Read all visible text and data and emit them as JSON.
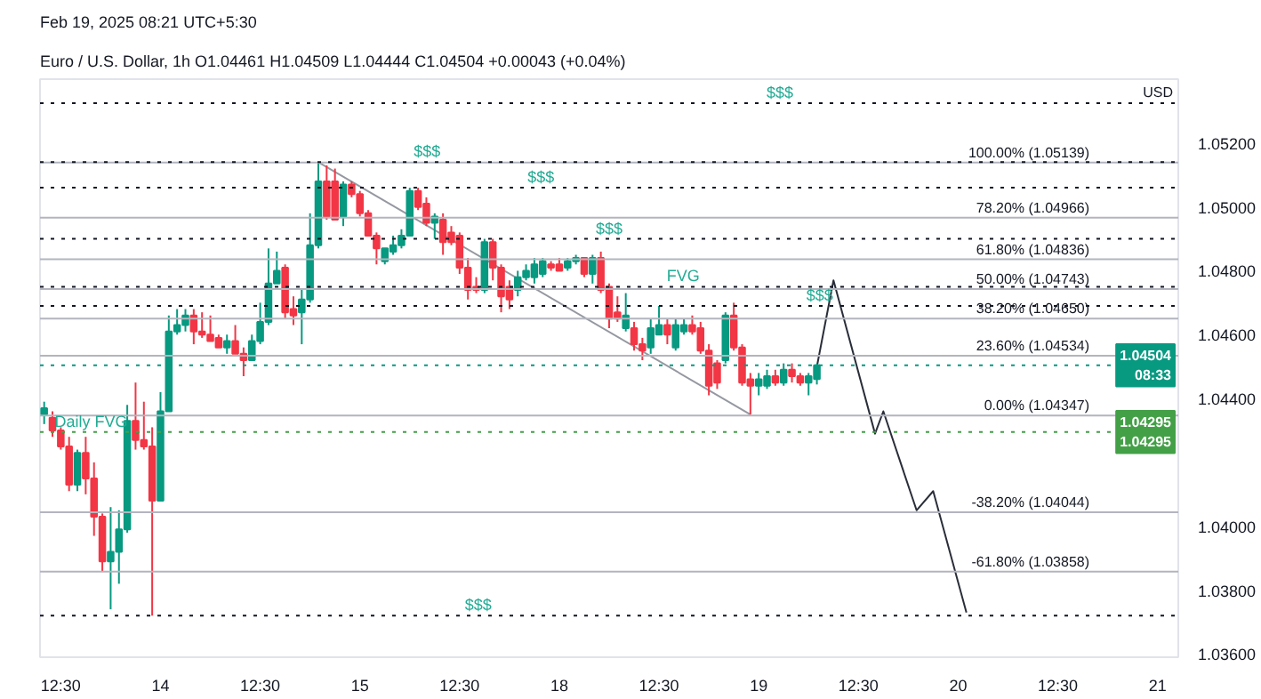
{
  "chart_data": {
    "type": "candlestick",
    "title": "Feb 19, 2025 08:21 UTC+5:30",
    "subtitle": "Euro / U.S. Dollar, 1h O1.04461 H1.04509 L1.04444 C1.04504 +0.00043 (+0.04%)",
    "ylabel": "USD",
    "categories": [
      null,
      null,
      "12:30",
      null,
      null,
      null,
      null,
      null,
      null,
      null,
      null,
      null,
      null,
      null,
      "14",
      null,
      null,
      null,
      null,
      null,
      null,
      null,
      null,
      null,
      null,
      null,
      "12:30",
      null,
      null,
      null,
      null,
      null,
      null,
      null,
      null,
      null,
      null,
      null,
      "15",
      null,
      null,
      null,
      null,
      null,
      null,
      null,
      null,
      null,
      null,
      null,
      "12:30",
      null,
      null,
      null,
      null,
      null,
      null,
      null,
      null,
      null,
      null,
      null,
      "18",
      null,
      null,
      null,
      null,
      null,
      null,
      null,
      null,
      null,
      null,
      null,
      "12:30",
      null,
      null,
      null,
      null,
      null,
      null,
      null,
      null,
      null,
      null,
      null,
      "19",
      null,
      null,
      null,
      null,
      null,
      null,
      null,
      null,
      null,
      null,
      null,
      "12:30",
      null,
      null,
      null,
      null,
      null,
      null,
      null,
      null,
      null,
      null,
      null,
      "20",
      null,
      null,
      null,
      null,
      null,
      null,
      null,
      null,
      null,
      null,
      null,
      "12:30",
      null,
      null,
      null,
      null,
      null,
      null,
      null,
      null,
      null,
      null,
      null,
      "21",
      null,
      null
    ],
    "ohlc": [
      [
        1.0435,
        1.0439,
        1.0432,
        1.0437
      ],
      [
        1.0434,
        1.0436,
        1.0428,
        1.043
      ],
      [
        1.043,
        1.0431,
        1.0424,
        1.0425
      ],
      [
        1.0425,
        1.0428,
        1.0411,
        1.0413
      ],
      [
        1.0413,
        1.0424,
        1.0411,
        1.0423
      ],
      [
        1.0423,
        1.0428,
        1.041,
        1.0415
      ],
      [
        1.0415,
        1.042,
        1.0397,
        1.0403
      ],
      [
        1.0403,
        1.0404,
        1.0386,
        1.0389
      ],
      [
        1.0389,
        1.0406,
        1.0374,
        1.0392
      ],
      [
        1.0392,
        1.0405,
        1.0382,
        1.0399
      ],
      [
        1.0399,
        1.0438,
        1.0398,
        1.0433
      ],
      [
        1.0433,
        1.0445,
        1.0424,
        1.0427
      ],
      [
        1.0427,
        1.0439,
        1.0424,
        1.0425
      ],
      [
        1.0425,
        1.0431,
        1.0372,
        1.0408
      ],
      [
        1.0408,
        1.0442,
        1.0408,
        1.0436
      ],
      [
        1.0436,
        1.0466,
        1.0436,
        1.0461
      ],
      [
        1.0461,
        1.0468,
        1.046,
        1.0463
      ],
      [
        1.0463,
        1.0468,
        1.0461,
        1.0466
      ],
      [
        1.0466,
        1.0468,
        1.0457,
        1.0461
      ],
      [
        1.0461,
        1.0467,
        1.0459,
        1.046
      ],
      [
        1.046,
        1.0466,
        1.0458,
        1.0458
      ],
      [
        1.0459,
        1.046,
        1.0456,
        1.0456
      ],
      [
        1.0456,
        1.046,
        1.0454,
        1.0458
      ],
      [
        1.0458,
        1.0463,
        1.0454,
        1.0454
      ],
      [
        1.0454,
        1.0456,
        1.0447,
        1.0452
      ],
      [
        1.0452,
        1.046,
        1.0452,
        1.0458
      ],
      [
        1.0458,
        1.047,
        1.0457,
        1.0464
      ],
      [
        1.0464,
        1.0487,
        1.0463,
        1.0476
      ],
      [
        1.0476,
        1.0486,
        1.0476,
        1.048
      ],
      [
        1.0481,
        1.0482,
        1.0465,
        1.0467
      ],
      [
        1.0468,
        1.0472,
        1.0463,
        1.0466
      ],
      [
        1.0467,
        1.0474,
        1.0457,
        1.0471
      ],
      [
        1.0471,
        1.0498,
        1.047,
        1.0488
      ],
      [
        1.0488,
        1.0514,
        1.0487,
        1.0508
      ],
      [
        1.0508,
        1.0513,
        1.0496,
        1.0497
      ],
      [
        1.0508,
        1.0512,
        1.0496,
        1.0496
      ],
      [
        1.0497,
        1.0508,
        1.0494,
        1.0507
      ],
      [
        1.0507,
        1.0508,
        1.0503,
        1.0504
      ],
      [
        1.0504,
        1.0505,
        1.0497,
        1.0498
      ],
      [
        1.0498,
        1.0499,
        1.0491,
        1.0491
      ],
      [
        1.0491,
        1.0492,
        1.0482,
        1.0487
      ],
      [
        1.0483,
        1.0487,
        1.0482,
        1.0487
      ],
      [
        1.0486,
        1.0491,
        1.0485,
        1.0488
      ],
      [
        1.0488,
        1.0493,
        1.0487,
        1.0491
      ],
      [
        1.0491,
        1.0506,
        1.0491,
        1.0505
      ],
      [
        1.0505,
        1.0506,
        1.0499,
        1.05
      ],
      [
        1.0501,
        1.0503,
        1.0494,
        1.0495
      ],
      [
        1.0495,
        1.0498,
        1.049,
        1.0497
      ],
      [
        1.0496,
        1.0498,
        1.0485,
        1.0489
      ],
      [
        1.0492,
        1.0494,
        1.0488,
        1.0489
      ],
      [
        1.0491,
        1.0492,
        1.0479,
        1.0481
      ],
      [
        1.0481,
        1.0484,
        1.0471,
        1.0474
      ],
      [
        1.0475,
        1.0478,
        1.0473,
        1.0474
      ],
      [
        1.0474,
        1.049,
        1.0473,
        1.0489
      ],
      [
        1.0489,
        1.049,
        1.0477,
        1.0481
      ],
      [
        1.0481,
        1.0482,
        1.0467,
        1.0472
      ],
      [
        1.0475,
        1.0477,
        1.0468,
        1.0471
      ],
      [
        1.0474,
        1.048,
        1.0472,
        1.0478
      ],
      [
        1.0478,
        1.0482,
        1.0477,
        1.048
      ],
      [
        1.0478,
        1.0484,
        1.0476,
        1.0482
      ],
      [
        1.0479,
        1.0484,
        1.0478,
        1.0483
      ],
      [
        1.0482,
        1.0483,
        1.048,
        1.0481
      ],
      [
        1.0482,
        1.0484,
        1.048,
        1.048
      ],
      [
        1.0481,
        1.0484,
        1.048,
        1.0483
      ],
      [
        1.0483,
        1.0485,
        1.0482,
        1.0484
      ],
      [
        1.0484,
        1.0484,
        1.0478,
        1.0479
      ],
      [
        1.0479,
        1.0485,
        1.0476,
        1.0484
      ],
      [
        1.0484,
        1.0486,
        1.0473,
        1.0474
      ],
      [
        1.0475,
        1.0476,
        1.0462,
        1.0465
      ],
      [
        1.0467,
        1.0472,
        1.0464,
        1.0465
      ],
      [
        1.0462,
        1.0473,
        1.0461,
        1.0466
      ],
      [
        1.0462,
        1.0464,
        1.0455,
        1.0457
      ],
      [
        1.0457,
        1.0459,
        1.0452,
        1.0455
      ],
      [
        1.0456,
        1.0465,
        1.0454,
        1.0462
      ],
      [
        1.046,
        1.0469,
        1.046,
        1.0463
      ],
      [
        1.0463,
        1.0465,
        1.0457,
        1.046
      ],
      [
        1.0456,
        1.0465,
        1.0455,
        1.0463
      ],
      [
        1.0461,
        1.0465,
        1.046,
        1.0463
      ],
      [
        1.0463,
        1.0466,
        1.046,
        1.0461
      ],
      [
        1.0462,
        1.0464,
        1.0454,
        1.0455
      ],
      [
        1.0455,
        1.0457,
        1.0441,
        1.0444
      ],
      [
        1.0451,
        1.0452,
        1.0443,
        1.0445
      ],
      [
        1.0452,
        1.0467,
        1.0451,
        1.0466
      ],
      [
        1.0466,
        1.047,
        1.0455,
        1.0456
      ],
      [
        1.0456,
        1.0457,
        1.0444,
        1.0445
      ],
      [
        1.0446,
        1.0448,
        1.0435,
        1.0444
      ],
      [
        1.0444,
        1.0448,
        1.0441,
        1.0446
      ],
      [
        1.0444,
        1.0449,
        1.0443,
        1.0447
      ],
      [
        1.0447,
        1.0449,
        1.0444,
        1.0445
      ],
      [
        1.0445,
        1.0451,
        1.0444,
        1.0449
      ],
      [
        1.0449,
        1.0451,
        1.0445,
        1.0447
      ],
      [
        1.0447,
        1.0448,
        1.0444,
        1.0445
      ],
      [
        1.0445,
        1.0448,
        1.0441,
        1.0447
      ],
      [
        1.04461,
        1.04509,
        1.04444,
        1.04504
      ],
      null,
      null,
      null,
      null,
      null,
      null,
      null,
      null,
      null,
      null,
      null,
      null,
      null,
      null,
      null,
      null,
      null,
      null,
      null,
      null,
      null,
      null,
      null,
      null,
      null,
      null,
      null,
      null,
      null,
      null,
      null,
      null,
      null,
      null,
      null,
      null,
      null,
      null,
      null,
      null,
      null,
      null,
      null
    ],
    "colors": [
      "#089981",
      "#f23645",
      "#f23645",
      "#f23645",
      "#089981",
      "#f23645",
      "#f23645",
      "#f23645",
      "#089981",
      "#089981",
      "#089981",
      "#f23645",
      "#f23645",
      "#f23645",
      "#089981",
      "#089981",
      "#089981",
      "#089981",
      "#f23645",
      "#f23645",
      "#f23645",
      "#f23645",
      "#089981",
      "#f23645",
      "#f23645",
      "#089981",
      "#089981",
      "#089981",
      "#089981",
      "#f23645",
      "#f23645",
      "#089981",
      "#089981",
      "#089981",
      "#f23645",
      "#f23645",
      "#089981",
      "#f23645",
      "#f23645",
      "#f23645",
      "#f23645",
      "#089981",
      "#089981",
      "#089981",
      "#089981",
      "#f23645",
      "#f23645",
      "#089981",
      "#f23645",
      "#f23645",
      "#f23645",
      "#f23645",
      "#f23645",
      "#089981",
      "#f23645",
      "#f23645",
      "#f23645",
      "#089981",
      "#089981",
      "#089981",
      "#089981",
      "#f23645",
      "#f23645",
      "#089981",
      "#089981",
      "#f23645",
      "#089981",
      "#f23645",
      "#f23645",
      "#f23645",
      "#089981",
      "#f23645",
      "#f23645",
      "#089981",
      "#089981",
      "#f23645",
      "#089981",
      "#089981",
      "#f23645",
      "#f23645",
      "#f23645",
      "#f23645",
      "#089981",
      "#f23645",
      "#f23645",
      "#f23645",
      "#089981",
      "#089981",
      "#f23645",
      "#089981",
      "#f23645",
      "#f23645",
      "#089981",
      "#089981",
      null,
      null,
      null,
      null,
      null,
      null,
      null,
      null,
      null,
      null,
      null,
      null,
      null,
      null,
      null,
      null,
      null,
      null,
      null,
      null,
      null,
      null,
      null,
      null,
      null,
      null,
      null,
      null,
      null,
      null,
      null,
      null,
      null,
      null,
      null,
      null,
      null,
      null,
      null,
      null,
      null,
      null,
      null
    ],
    "series": [
      {
        "type": "line",
        "color": "#9598a1",
        "values": [
          null,
          null,
          null,
          null,
          null,
          null,
          null,
          null,
          null,
          null,
          null,
          null,
          null,
          null,
          null,
          null,
          null,
          null,
          null,
          null,
          null,
          null,
          null,
          null,
          null,
          null,
          null,
          null,
          null,
          null,
          null,
          null,
          null,
          1.0514,
          null,
          null,
          null,
          null,
          null,
          null,
          null,
          null,
          null,
          null,
          null,
          null,
          null,
          null,
          null,
          null,
          null,
          null,
          null,
          null,
          null,
          null,
          null,
          null,
          null,
          null,
          null,
          null,
          null,
          null,
          null,
          null,
          null,
          null,
          null,
          null,
          null,
          null,
          null,
          null,
          null,
          null,
          null,
          null,
          null,
          null,
          null,
          null,
          null,
          null,
          null,
          1.0435,
          null,
          null,
          null,
          null,
          null,
          null,
          null,
          null,
          null,
          null,
          null,
          null,
          null,
          null,
          null,
          null,
          null,
          null,
          null,
          null,
          null,
          null,
          null,
          null,
          null,
          null,
          null,
          null,
          null,
          null,
          null,
          null,
          null,
          null,
          null,
          null,
          null,
          null,
          null,
          null,
          null,
          null,
          null,
          null,
          null,
          null,
          null,
          null,
          null,
          null,
          null
        ]
      },
      {
        "type": "line",
        "color": "#2a2e39",
        "values": [
          null,
          null,
          null,
          null,
          null,
          null,
          null,
          null,
          null,
          null,
          null,
          null,
          null,
          null,
          null,
          null,
          null,
          null,
          null,
          null,
          null,
          null,
          null,
          null,
          null,
          null,
          null,
          null,
          null,
          null,
          null,
          null,
          null,
          null,
          null,
          null,
          null,
          null,
          null,
          null,
          null,
          null,
          null,
          null,
          null,
          null,
          null,
          null,
          null,
          null,
          null,
          null,
          null,
          null,
          null,
          null,
          null,
          null,
          null,
          null,
          null,
          null,
          null,
          null,
          null,
          null,
          null,
          null,
          null,
          null,
          null,
          null,
          null,
          null,
          null,
          null,
          null,
          null,
          null,
          null,
          null,
          null,
          null,
          null,
          null,
          null,
          null,
          null,
          null,
          null,
          null,
          null,
          null,
          1.045,
          null,
          1.0477,
          null,
          null,
          null,
          null,
          1.0429,
          1.0436,
          null,
          null,
          null,
          1.0405,
          null,
          1.0411,
          null,
          null,
          null,
          1.0373,
          null,
          null,
          null,
          null,
          null,
          null,
          null,
          null,
          null,
          null,
          null,
          null,
          null,
          null,
          null,
          null,
          null,
          null,
          null,
          null,
          null,
          null,
          null,
          null,
          null
        ]
      }
    ],
    "ylim": [
      1.0359,
      1.054
    ],
    "yticks": [
      {
        "value": 1.036,
        "label": "1.03600"
      },
      {
        "value": 1.038,
        "label": "1.03800"
      },
      {
        "value": 1.04,
        "label": "1.04000"
      },
      {
        "value": 1.044,
        "label": "1.04400"
      },
      {
        "value": 1.046,
        "label": "1.04600"
      },
      {
        "value": 1.048,
        "label": "1.04800"
      },
      {
        "value": 1.05,
        "label": "1.05000"
      },
      {
        "value": 1.052,
        "label": "1.05200"
      }
    ],
    "ref_lines": [
      {
        "axis": "y",
        "value": 1.05139,
        "label": "100.00% (1.05139)",
        "color": "#b2b5be",
        "line_style": "solid"
      },
      {
        "axis": "y",
        "value": 1.04966,
        "label": "78.20% (1.04966)",
        "color": "#b2b5be",
        "line_style": "solid"
      },
      {
        "axis": "y",
        "value": 1.04836,
        "label": "61.80% (1.04836)",
        "color": "#b2b5be",
        "line_style": "solid"
      },
      {
        "axis": "y",
        "value": 1.04743,
        "label": "50.00% (1.04743)",
        "color": "#b2b5be",
        "line_style": "solid"
      },
      {
        "axis": "y",
        "value": 1.0465,
        "label": "38.20% (1.04650)",
        "color": "#b2b5be",
        "line_style": "solid"
      },
      {
        "axis": "y",
        "value": 1.04534,
        "label": "23.60% (1.04534)",
        "color": "#b2b5be",
        "line_style": "solid"
      },
      {
        "axis": "y",
        "value": 1.04347,
        "label": "0.00% (1.04347)",
        "color": "#b2b5be",
        "line_style": "solid"
      },
      {
        "axis": "y",
        "value": 1.04044,
        "label": "-38.20% (1.04044)",
        "color": "#b2b5be",
        "line_style": "solid"
      },
      {
        "axis": "y",
        "value": 1.03858,
        "label": "-61.80% (1.03858)",
        "color": "#b2b5be",
        "line_style": "solid"
      },
      {
        "axis": "y",
        "value": 1.05325,
        "color": "#131722",
        "line_style": "dotted"
      },
      {
        "axis": "y",
        "value": 1.0514,
        "color": "#131722",
        "line_style": "dotted"
      },
      {
        "axis": "y",
        "value": 1.0506,
        "color": "#131722",
        "line_style": "dotted"
      },
      {
        "axis": "y",
        "value": 1.049,
        "color": "#131722",
        "line_style": "dotted"
      },
      {
        "axis": "y",
        "value": 1.0475,
        "color": "#131722",
        "line_style": "dotted"
      },
      {
        "axis": "y",
        "value": 1.0469,
        "color": "#131722",
        "line_style": "dotted"
      },
      {
        "axis": "y",
        "value": 1.0372,
        "color": "#131722",
        "line_style": "dotted"
      },
      {
        "axis": "y",
        "value": 1.04504,
        "label": "1.04504\n08:33",
        "color": "#089981",
        "line_style": "dotted"
      },
      {
        "axis": "y",
        "value": 1.04295,
        "label": "1.04295\n1.04295",
        "color": "#43a047",
        "line_style": "dotted"
      }
    ],
    "annotations": [
      {
        "text": "$$$",
        "y": 1.05325
      },
      {
        "text": "$$$",
        "y": 1.0514
      },
      {
        "text": "$$$",
        "y": 1.0506
      },
      {
        "text": "$$$",
        "y": 1.049
      },
      {
        "text": "FVG",
        "y": 1.0475
      },
      {
        "text": "$$$",
        "y": 1.0469
      },
      {
        "text": "$$$",
        "y": 1.0372
      },
      {
        "text": "Daily FVG",
        "y": 1.04295
      }
    ]
  }
}
